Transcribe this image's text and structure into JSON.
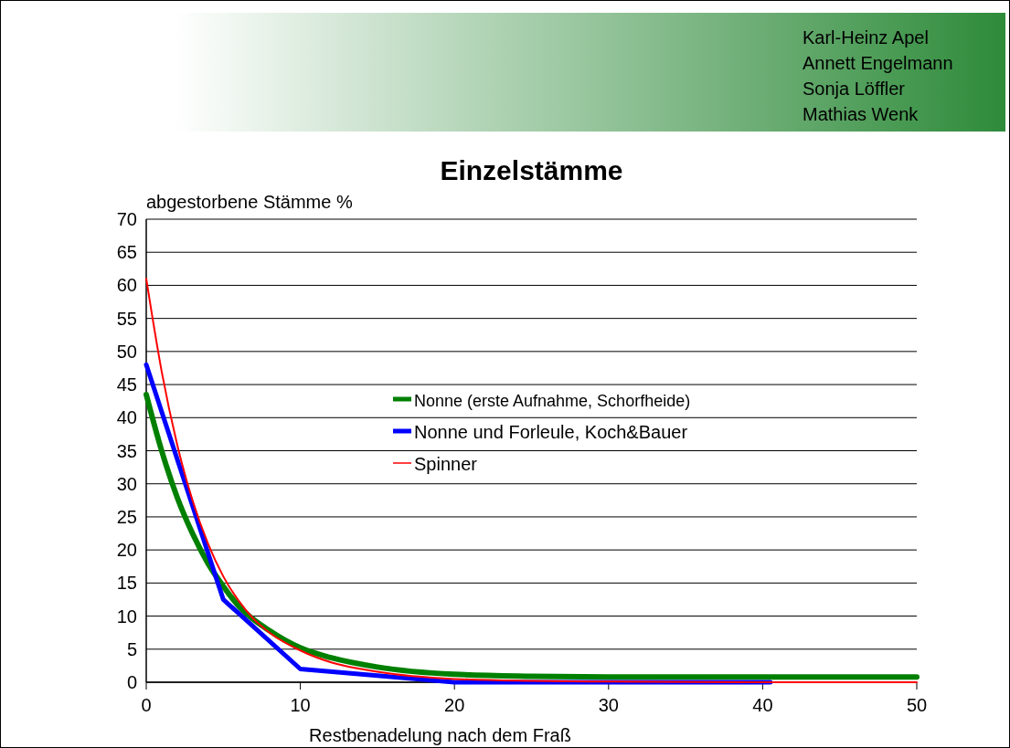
{
  "chart_data": {
    "type": "line",
    "title": "Einzelstämme",
    "ylabel": "abgestorbene Stämme %",
    "xlabel": "Restbenadelung nach dem Fraß",
    "annotations": [
      "Karl-Heinz Apel",
      "Annett Engelmann",
      "Sonja Löffler",
      "Mathias Wenk"
    ],
    "series": [
      {
        "name": "Nonne (erste Aufnahme, Schorfheide)",
        "color": "#008000",
        "x": [
          0,
          1,
          2,
          3,
          4,
          5,
          6,
          8,
          10,
          12,
          15,
          20,
          25,
          30,
          40,
          50
        ],
        "values": [
          43.5,
          35,
          28,
          22.5,
          18,
          14.5,
          11.5,
          7.8,
          5.2,
          3.7,
          2.3,
          1.2,
          0.9,
          0.8,
          0.8,
          0.8
        ]
      },
      {
        "name": "Nonne und Forleule, Koch&Bauer",
        "color": "#0000ff",
        "x": [
          0,
          5,
          10,
          20,
          30,
          40.5
        ],
        "values": [
          48,
          12.5,
          2,
          0,
          0,
          0
        ]
      },
      {
        "name": "Spinner",
        "color": "#ff0000",
        "x": [
          0,
          1,
          2,
          3,
          4,
          5,
          6,
          7,
          8,
          10,
          12,
          15,
          20,
          25,
          30,
          40,
          50
        ],
        "values": [
          61,
          47,
          36,
          27.5,
          21,
          16,
          12.3,
          9.5,
          7.5,
          4.8,
          3,
          1.6,
          0.5,
          0.2,
          0.1,
          0,
          0
        ]
      }
    ],
    "xlim": [
      0,
      50
    ],
    "xticks": [
      0,
      10,
      20,
      30,
      40,
      50
    ],
    "ylim": [
      0,
      70
    ],
    "yticks": [
      0,
      5,
      10,
      15,
      20,
      25,
      30,
      35,
      40,
      45,
      50,
      55,
      60,
      65,
      70
    ],
    "grid": "y",
    "legend": "center",
    "marker": "none",
    "line_style": "solid"
  }
}
